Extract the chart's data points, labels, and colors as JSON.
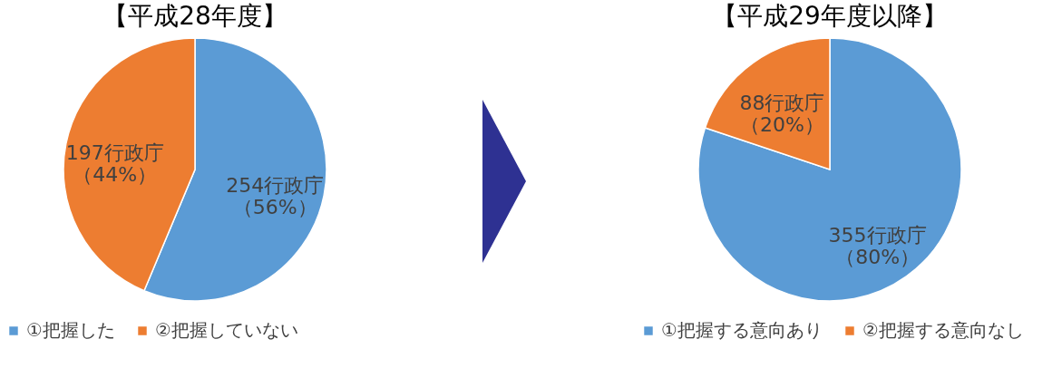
{
  "chart_data": [
    {
      "type": "pie",
      "title": "【平成28年度】",
      "categories": [
        "①把握した",
        "②把握していない"
      ],
      "values": [
        254,
        197
      ],
      "colors": [
        "#5b9bd5",
        "#ed7d31"
      ],
      "value_labels": [
        "254行政庁（56%）",
        "197行政庁（44%）"
      ],
      "legend": "bottom"
    },
    {
      "type": "pie",
      "title": "【平成29年度以降】",
      "categories": [
        "①把握する意向あり",
        "②把握する意向なし"
      ],
      "values": [
        355,
        88
      ],
      "colors": [
        "#5b9bd5",
        "#ed7d31"
      ],
      "value_labels": [
        "355行政庁（80%）",
        "88行政庁（20%）"
      ],
      "legend": "bottom"
    }
  ]
}
